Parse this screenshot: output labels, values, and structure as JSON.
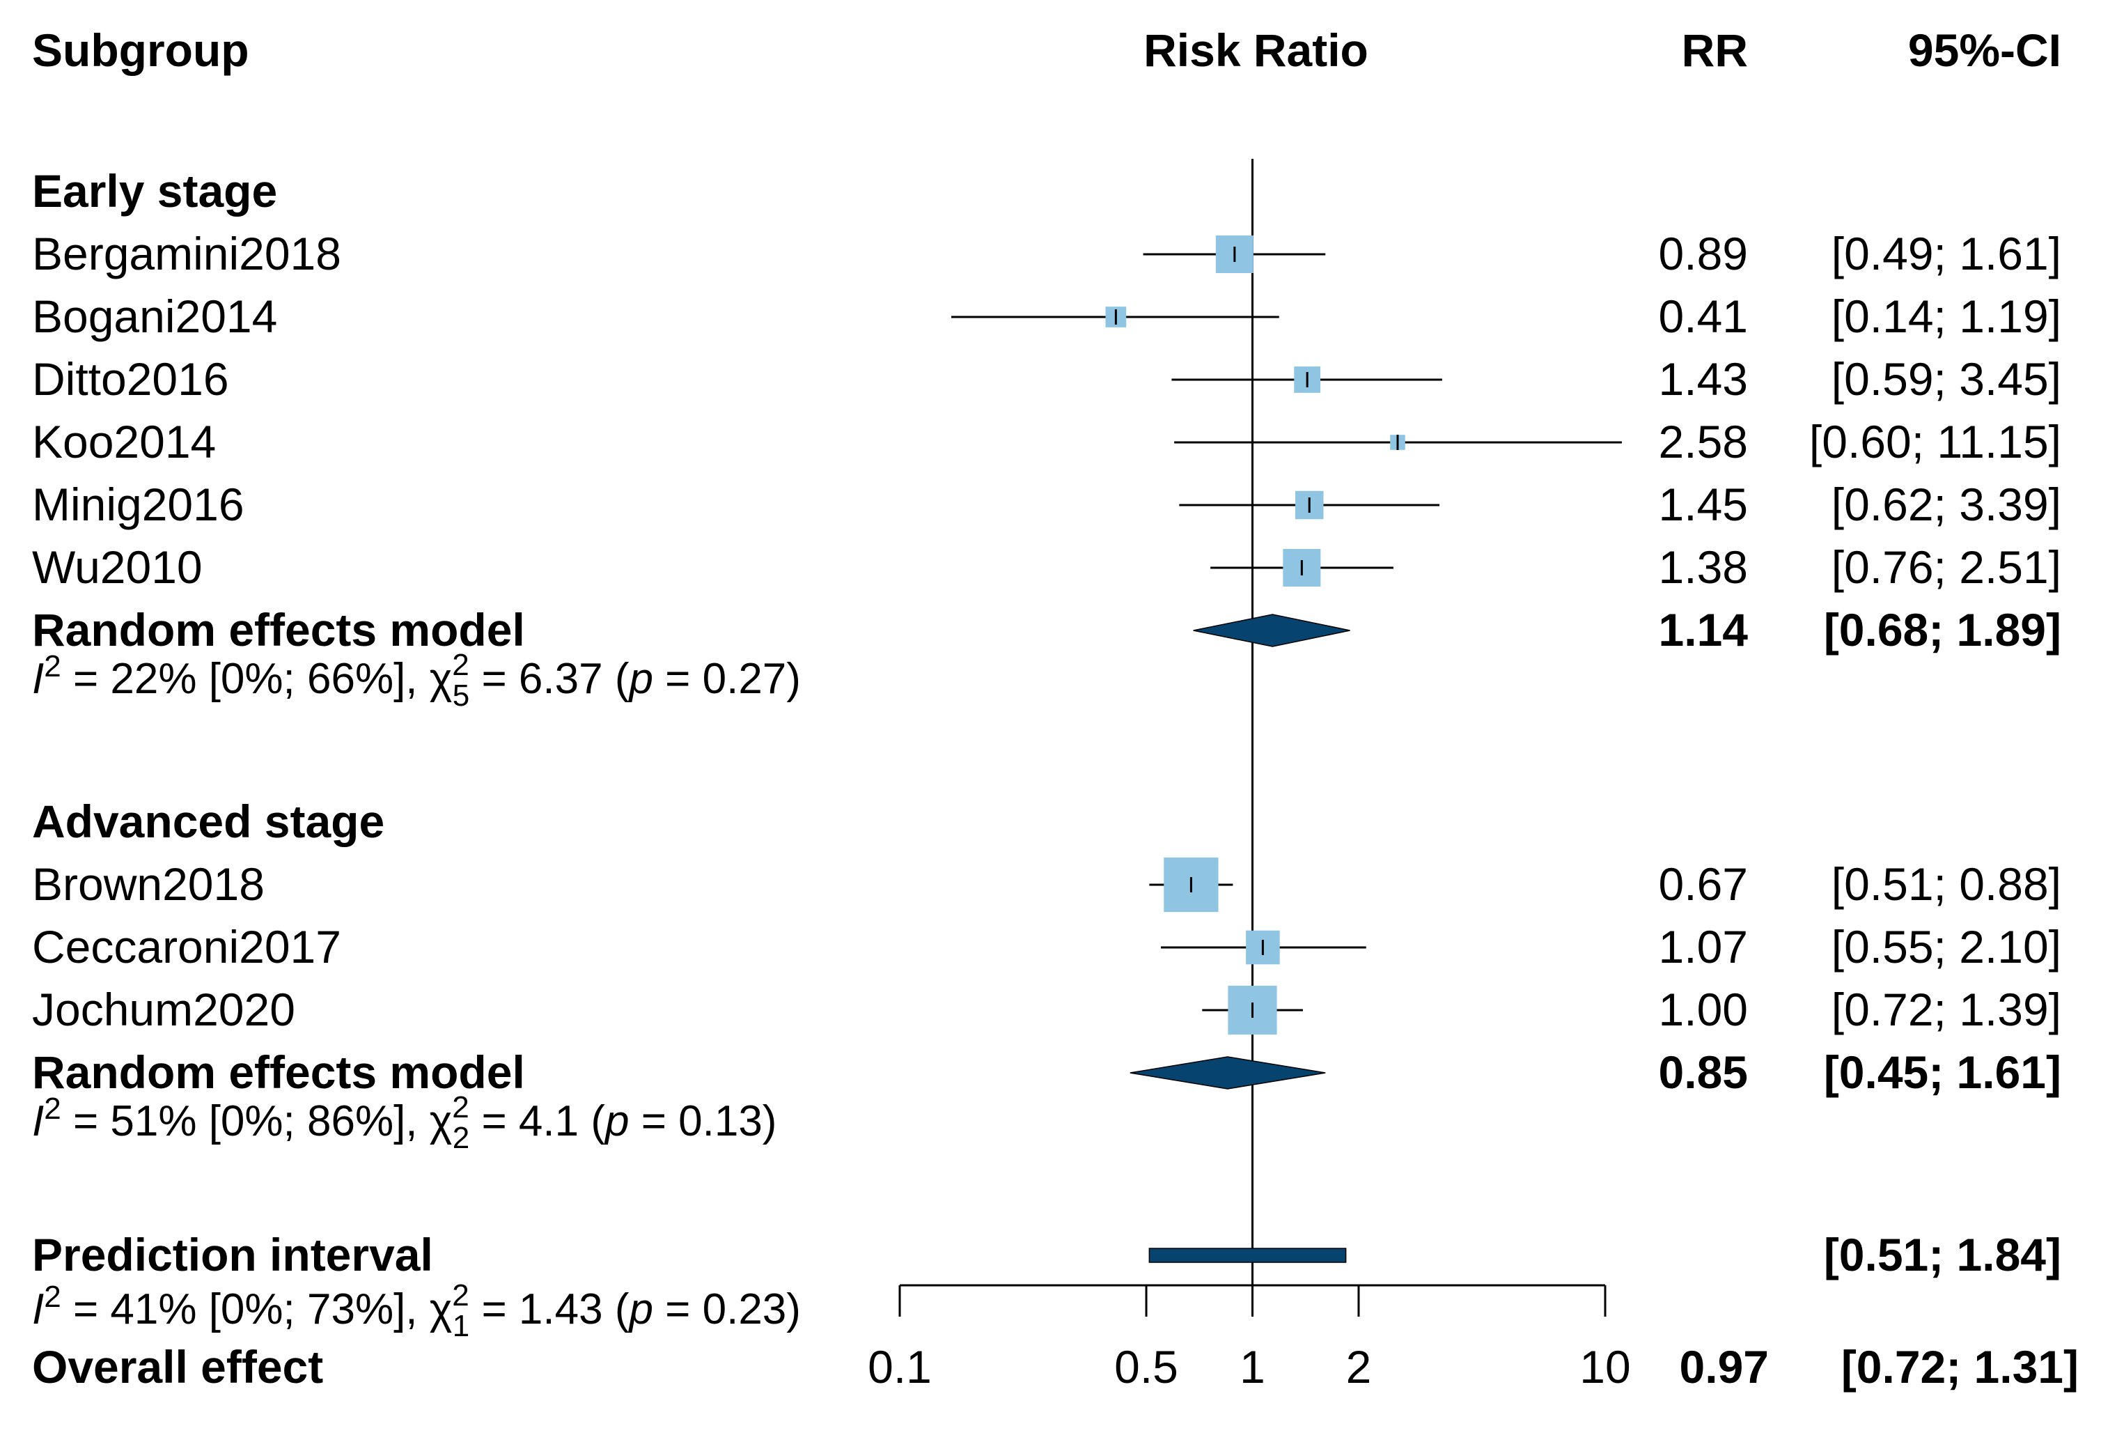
{
  "chart_data": {
    "type": "forest",
    "scale": "log",
    "xlim": [
      0.1,
      10
    ],
    "ref_line": 1,
    "x_ticks": [
      {
        "value": 0.1,
        "label": "0.1"
      },
      {
        "value": 0.5,
        "label": "0.5"
      },
      {
        "value": 1,
        "label": "1"
      },
      {
        "value": 2,
        "label": "2"
      },
      {
        "value": 10,
        "label": "10"
      }
    ],
    "headers": {
      "subgroup": "Subgroup",
      "plot": "Risk Ratio",
      "rr": "RR",
      "ci": "95%-CI"
    },
    "colors": {
      "study_box": "#8fc5e2",
      "diamond": "#06446f",
      "line": "#000000"
    },
    "groups": [
      {
        "label": "Early stage",
        "studies": [
          {
            "name": "Bergamini2018",
            "rr": 0.89,
            "lower": 0.49,
            "upper": 1.61,
            "weight": 1.0,
            "rr_text": "0.89",
            "ci_text": "[0.49;  1.61]"
          },
          {
            "name": "Bogani2014",
            "rr": 0.41,
            "lower": 0.14,
            "upper": 1.19,
            "weight": 0.55,
            "rr_text": "0.41",
            "ci_text": "[0.14;  1.19]"
          },
          {
            "name": "Ditto2016",
            "rr": 1.43,
            "lower": 0.59,
            "upper": 3.45,
            "weight": 0.7,
            "rr_text": "1.43",
            "ci_text": "[0.59;  3.45]"
          },
          {
            "name": "Koo2014",
            "rr": 2.58,
            "lower": 0.6,
            "upper": 11.15,
            "weight": 0.4,
            "rr_text": "2.58",
            "ci_text": "[0.60; 11.15]"
          },
          {
            "name": "Minig2016",
            "rr": 1.45,
            "lower": 0.62,
            "upper": 3.39,
            "weight": 0.75,
            "rr_text": "1.45",
            "ci_text": "[0.62;  3.39]"
          },
          {
            "name": "Wu2010",
            "rr": 1.38,
            "lower": 0.76,
            "upper": 2.51,
            "weight": 1.0,
            "rr_text": "1.38",
            "ci_text": "[0.76;  2.51]"
          }
        ],
        "model": {
          "label": "Random effects model",
          "rr": 1.14,
          "lower": 0.68,
          "upper": 1.89,
          "rr_text": "1.14",
          "ci_text": "[0.68;  1.89]"
        },
        "heterogeneity": {
          "i2": "22%",
          "i2_ci": "[0%; 66%]",
          "df": "5",
          "chi2": "6.37",
          "p": "0.27"
        }
      },
      {
        "label": "Advanced stage",
        "studies": [
          {
            "name": "Brown2018",
            "rr": 0.67,
            "lower": 0.51,
            "upper": 0.88,
            "weight": 1.45,
            "rr_text": "0.67",
            "ci_text": "[0.51;  0.88]"
          },
          {
            "name": "Ceccaroni2017",
            "rr": 1.07,
            "lower": 0.55,
            "upper": 2.1,
            "weight": 0.9,
            "rr_text": "1.07",
            "ci_text": "[0.55;  2.10]"
          },
          {
            "name": "Jochum2020",
            "rr": 1.0,
            "lower": 0.72,
            "upper": 1.39,
            "weight": 1.3,
            "rr_text": "1.00",
            "ci_text": "[0.72;  1.39]"
          }
        ],
        "model": {
          "label": "Random effects model",
          "rr": 0.85,
          "lower": 0.45,
          "upper": 1.61,
          "rr_text": "0.85",
          "ci_text": "[0.45;  1.61]"
        },
        "heterogeneity": {
          "i2": "51%",
          "i2_ci": "[0%; 86%]",
          "df": "2",
          "chi2": "4.1",
          "p": "0.13"
        }
      }
    ],
    "prediction_interval": {
      "label": "Prediction interval",
      "lower": 0.51,
      "upper": 1.84,
      "ci_text": "[0.51;  1.84]"
    },
    "overall_heterogeneity": {
      "i2": "41%",
      "i2_ci": "[0%; 73%]",
      "df": "1",
      "chi2": "1.43",
      "p": "0.23"
    },
    "overall": {
      "label": "Overall effect",
      "rr": 0.97,
      "lower": 0.72,
      "upper": 1.31,
      "rr_text": "0.97",
      "ci_text": "[0.72;  1.31]"
    }
  }
}
